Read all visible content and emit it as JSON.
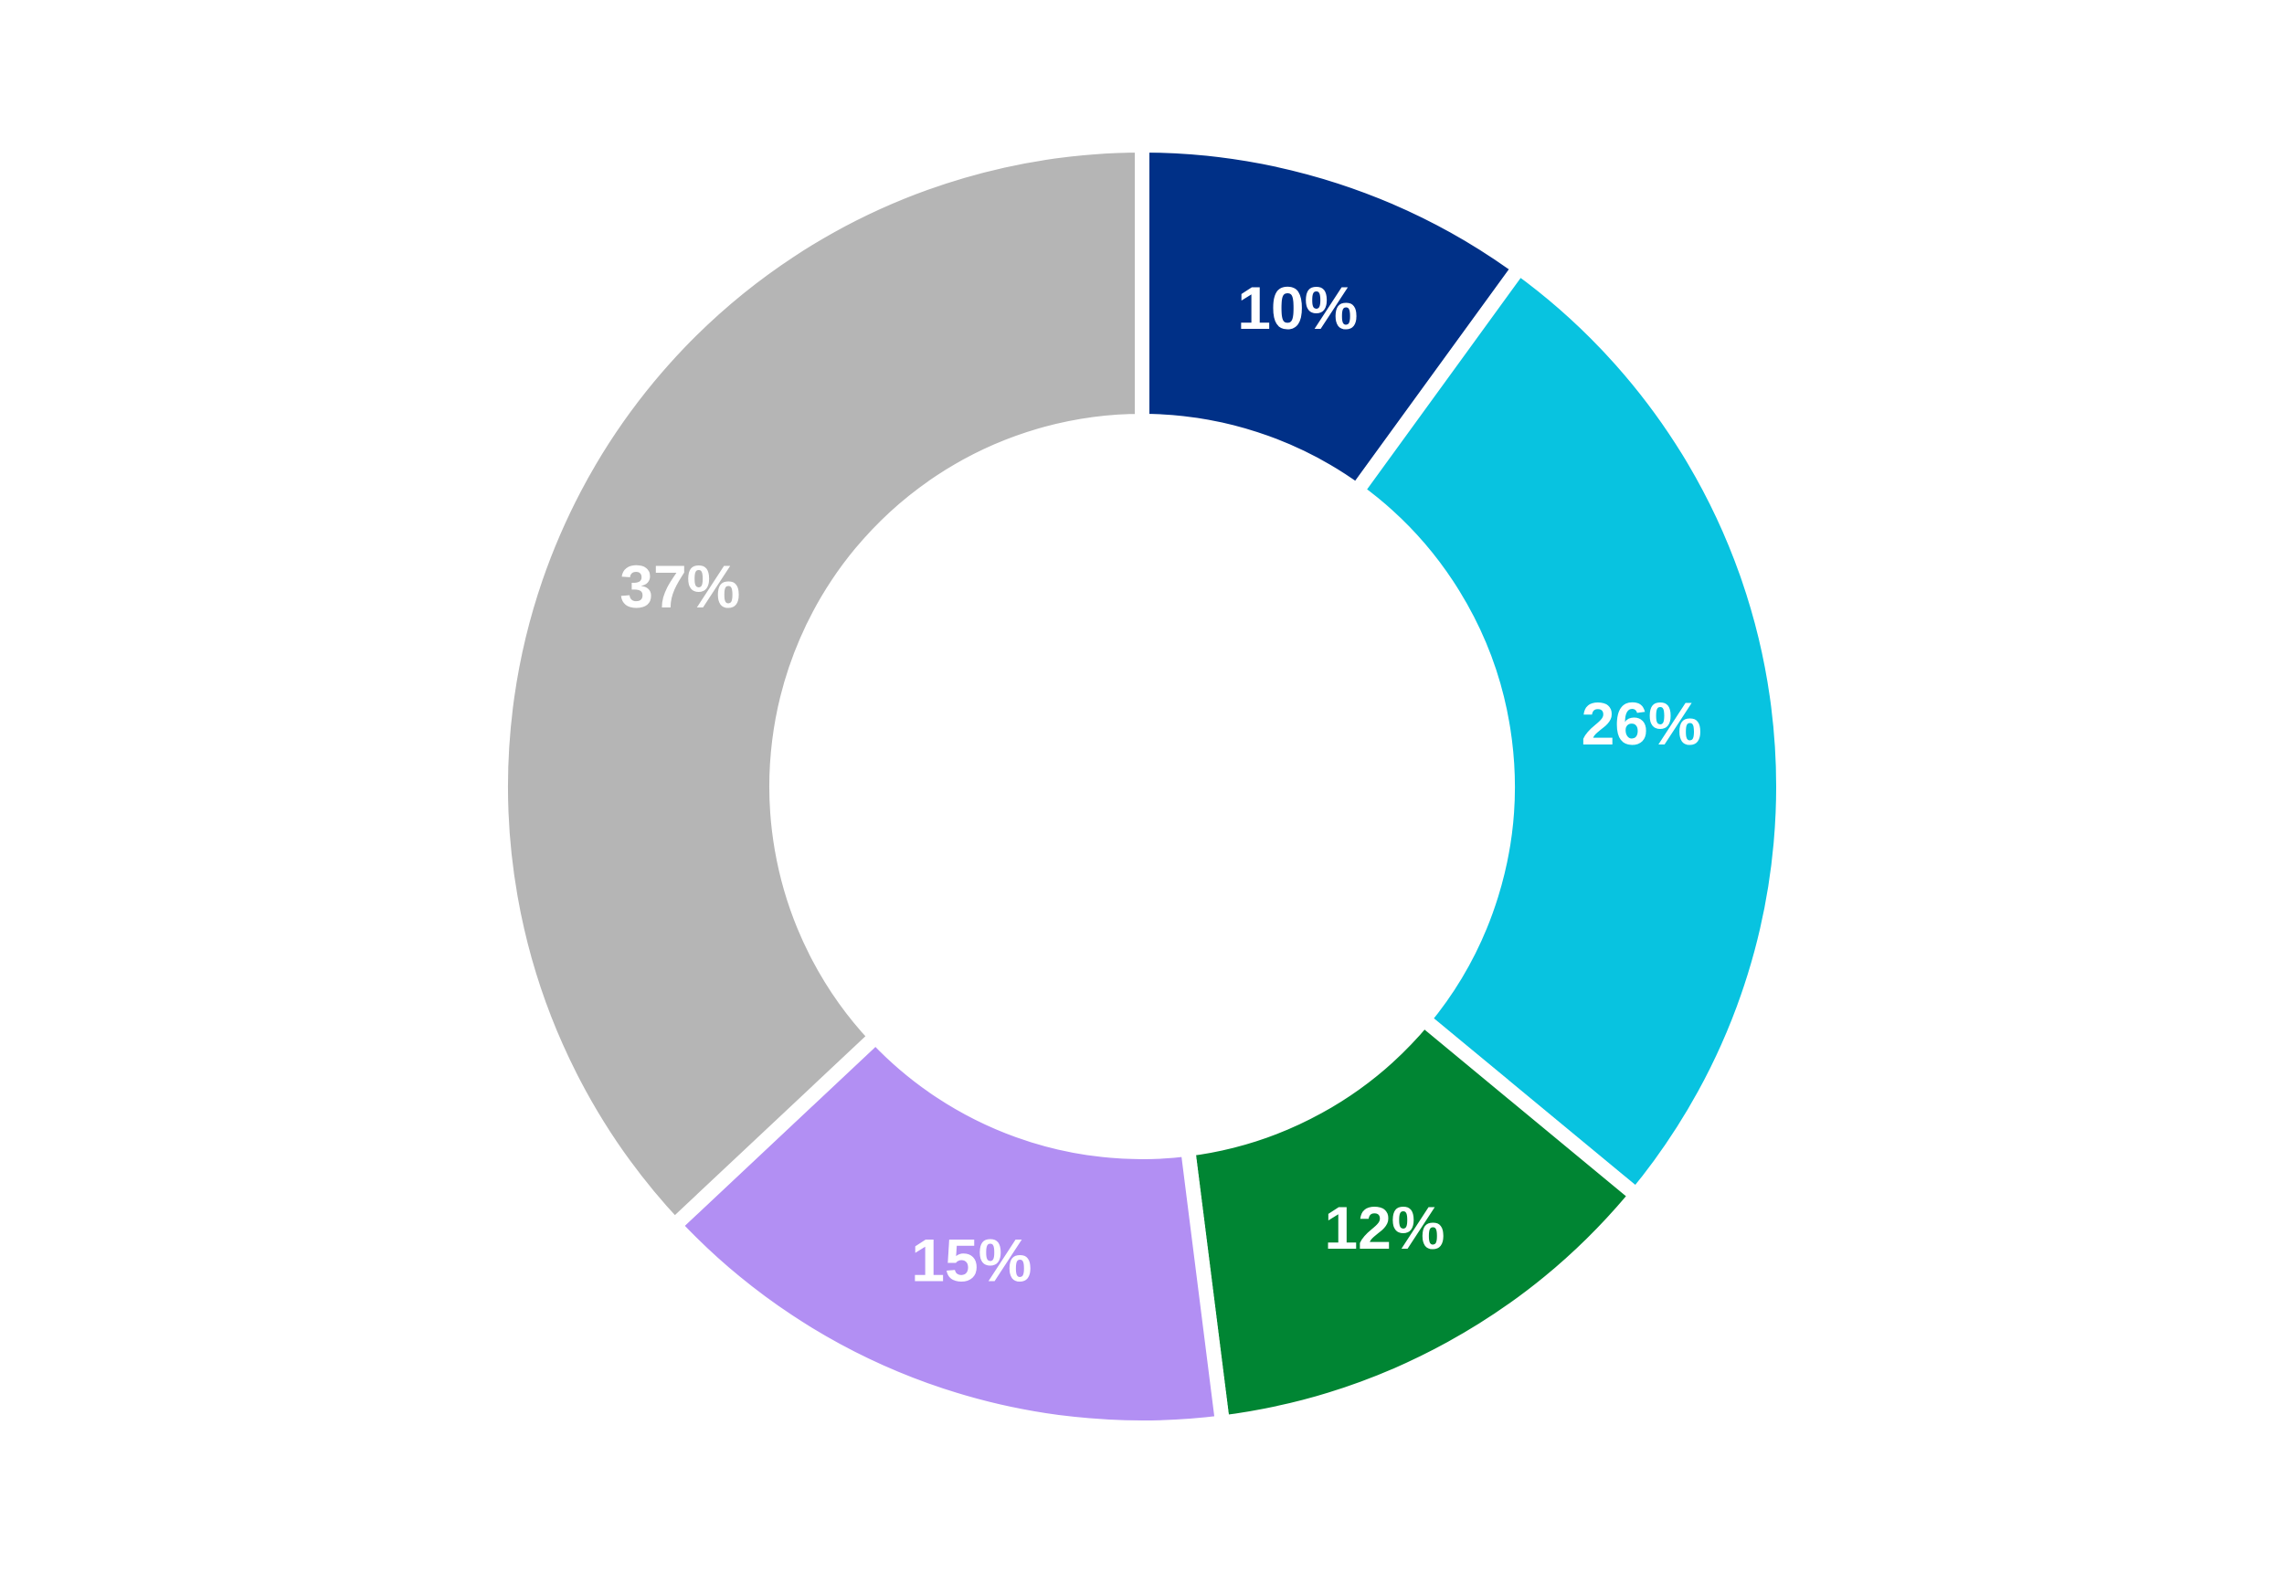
{
  "chart_data": {
    "type": "pie",
    "donut": true,
    "start": "12 o'clock, clockwise",
    "legend": "none",
    "slices": [
      {
        "label": "10%",
        "value": 10,
        "color": "#003087"
      },
      {
        "label": "26%",
        "value": 26,
        "color": "#08C3E0"
      },
      {
        "label": "12%",
        "value": 12,
        "color": "#008533"
      },
      {
        "label": "15%",
        "value": 15,
        "color": "#B28FF3"
      },
      {
        "label": "37%",
        "value": 37,
        "color": "#B5B5B5"
      }
    ]
  }
}
